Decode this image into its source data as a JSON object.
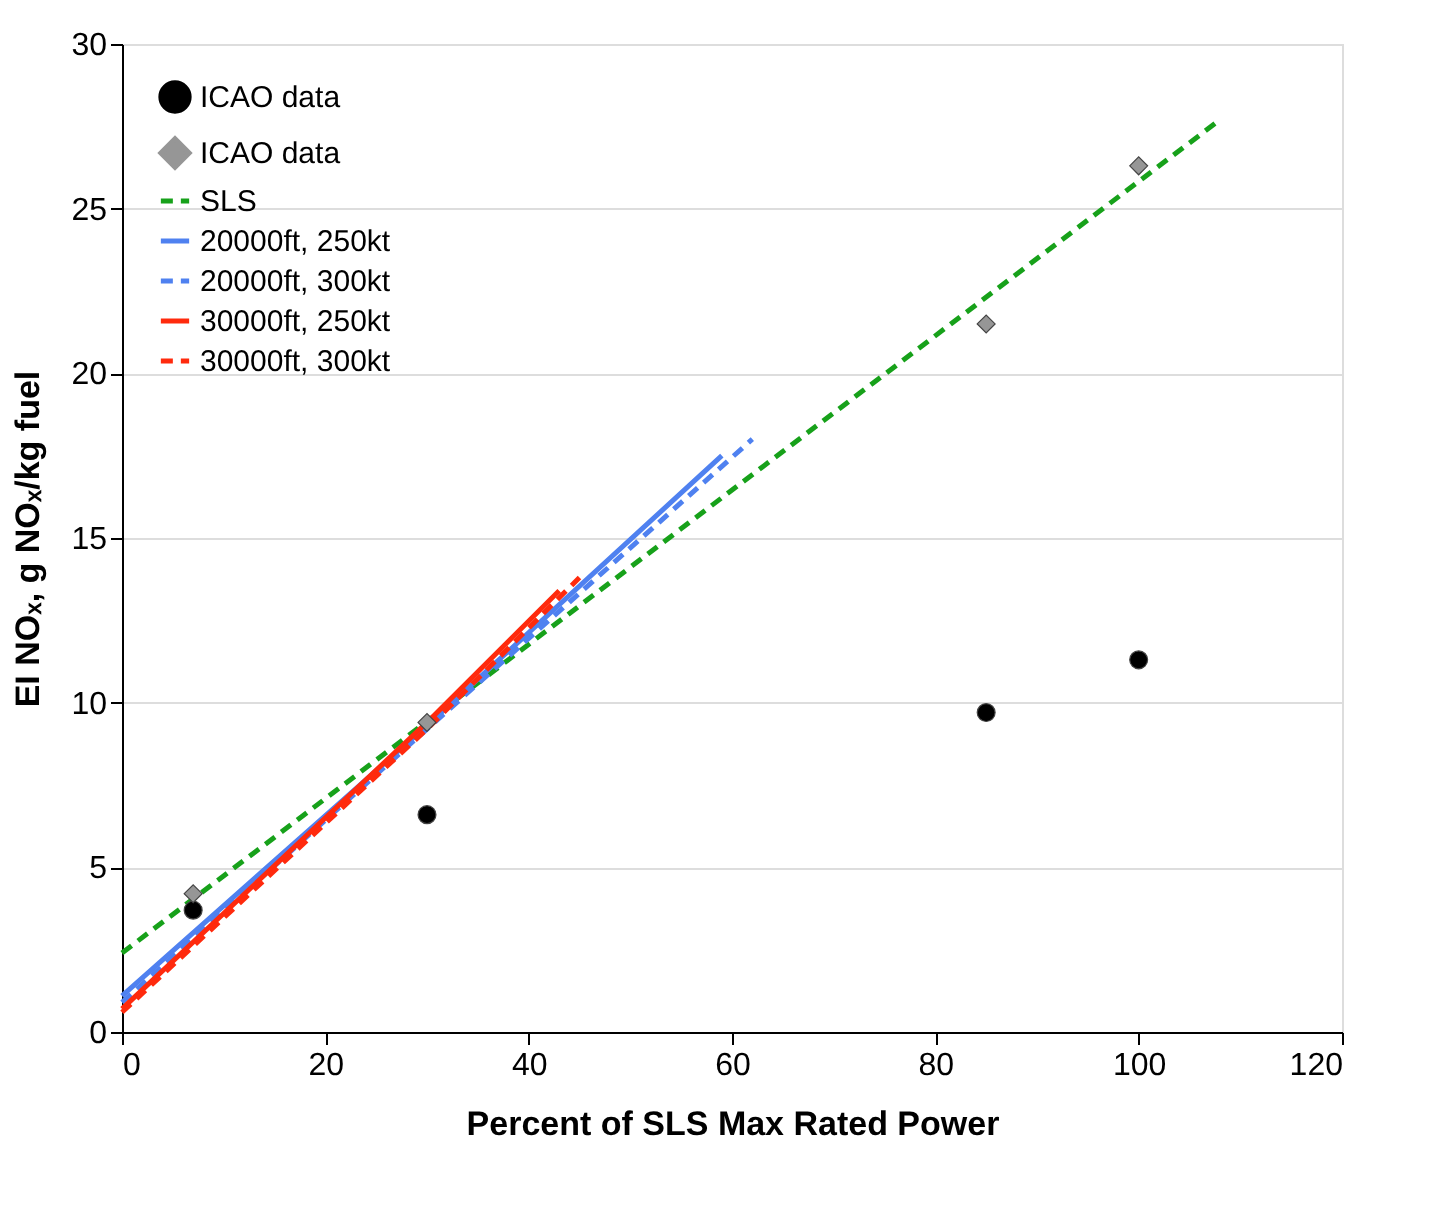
{
  "chart_data": {
    "type": "line",
    "xlabel": "Percent of SLS Max Rated Power",
    "ylabel": "EI NOₓ, g NOₓ/kg fuel",
    "xlim": [
      0,
      120
    ],
    "xticks": [
      0,
      20,
      40,
      60,
      80,
      100,
      120
    ],
    "ylim": [
      0,
      30
    ],
    "yticks": [
      0,
      5,
      10,
      15,
      20,
      25,
      30
    ],
    "grid": "y",
    "legend": "top left",
    "series": [
      {
        "name": "ICAO data",
        "type": "scatter",
        "marker": "circle",
        "color": "#000000",
        "x": [
          7,
          30,
          85,
          100
        ],
        "values": [
          3.7,
          6.6,
          9.7,
          11.3
        ]
      },
      {
        "name": "ICAO data",
        "type": "scatter",
        "marker": "diamond",
        "color": "#969696",
        "x": [
          7,
          30,
          85,
          100
        ],
        "values": [
          4.2,
          9.4,
          21.5,
          26.3
        ]
      },
      {
        "name": "SLS",
        "line_style": "dashed",
        "color": "#17a11a",
        "x": [
          0,
          108
        ],
        "values": [
          2.4,
          27.7
        ]
      },
      {
        "name": "20000ft, 250kt",
        "line_style": "solid",
        "color": "#4f81f0",
        "x": [
          0,
          30,
          59
        ],
        "values": [
          1.1,
          9.3,
          17.5
        ]
      },
      {
        "name": "20000ft, 300kt",
        "line_style": "dashed",
        "color": "#4f81f0",
        "x": [
          0,
          30,
          62
        ],
        "values": [
          0.9,
          9.2,
          18.0
        ]
      },
      {
        "name": "30000ft, 250kt",
        "line_style": "solid",
        "color": "#ff2a0d",
        "x": [
          0,
          30,
          43
        ],
        "values": [
          0.7,
          9.4,
          13.4
        ]
      },
      {
        "name": "30000ft, 300kt",
        "line_style": "dashed",
        "color": "#ff2a0d",
        "x": [
          0,
          30,
          45
        ],
        "values": [
          0.6,
          9.2,
          13.8
        ]
      }
    ]
  }
}
